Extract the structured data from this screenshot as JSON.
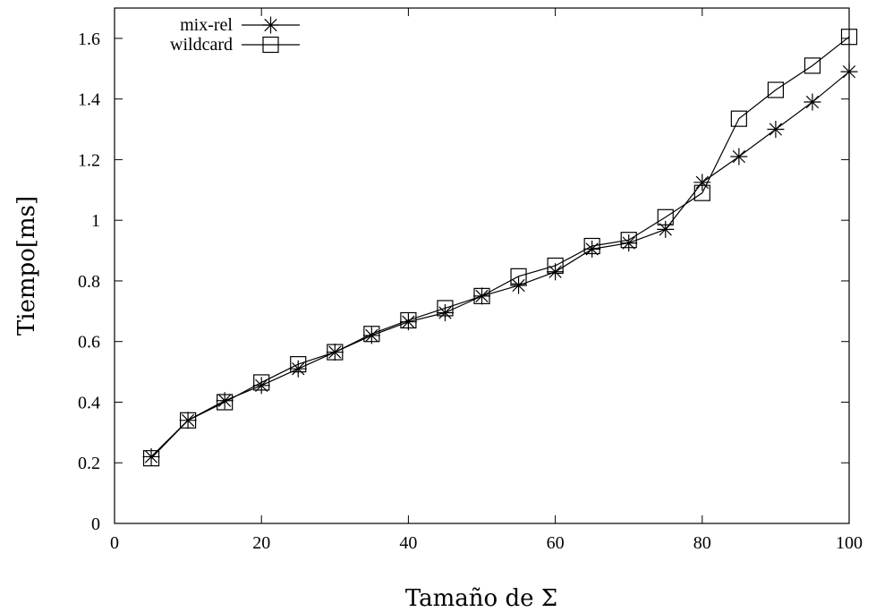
{
  "chart_data": {
    "type": "line",
    "title": "",
    "xlabel": "Tamaño de Σ",
    "ylabel": "Tiempo[ms]",
    "xlim": [
      0,
      100
    ],
    "ylim": [
      0,
      1.7
    ],
    "xticks": [
      0,
      20,
      40,
      60,
      80,
      100
    ],
    "yticks": [
      0,
      0.2,
      0.4,
      0.6,
      0.8,
      1,
      1.2,
      1.4,
      1.6
    ],
    "xtick_labels": [
      "0",
      "20",
      "40",
      "60",
      "80",
      "100"
    ],
    "ytick_labels": [
      "0",
      "0.2",
      "0.4",
      "0.6",
      "0.8",
      "1",
      "1.2",
      "1.4",
      "1.6"
    ],
    "grid": false,
    "legend_position": "top-left",
    "x": [
      5,
      10,
      15,
      20,
      25,
      30,
      35,
      40,
      45,
      50,
      55,
      60,
      65,
      70,
      75,
      80,
      85,
      90,
      95,
      100
    ],
    "series": [
      {
        "name": "mix-rel",
        "marker": "asterisk",
        "color": "#000000",
        "values": [
          0.22,
          0.34,
          0.405,
          0.455,
          0.51,
          0.565,
          0.62,
          0.665,
          0.695,
          0.75,
          0.785,
          0.83,
          0.905,
          0.925,
          0.97,
          1.125,
          1.21,
          1.3,
          1.39,
          1.49
        ]
      },
      {
        "name": "wildcard",
        "marker": "square",
        "color": "#000000",
        "values": [
          0.215,
          0.34,
          0.4,
          0.465,
          0.525,
          0.565,
          0.625,
          0.67,
          0.71,
          0.75,
          0.815,
          0.85,
          0.915,
          0.935,
          1.01,
          1.09,
          1.335,
          1.43,
          1.51,
          1.605
        ]
      }
    ]
  }
}
